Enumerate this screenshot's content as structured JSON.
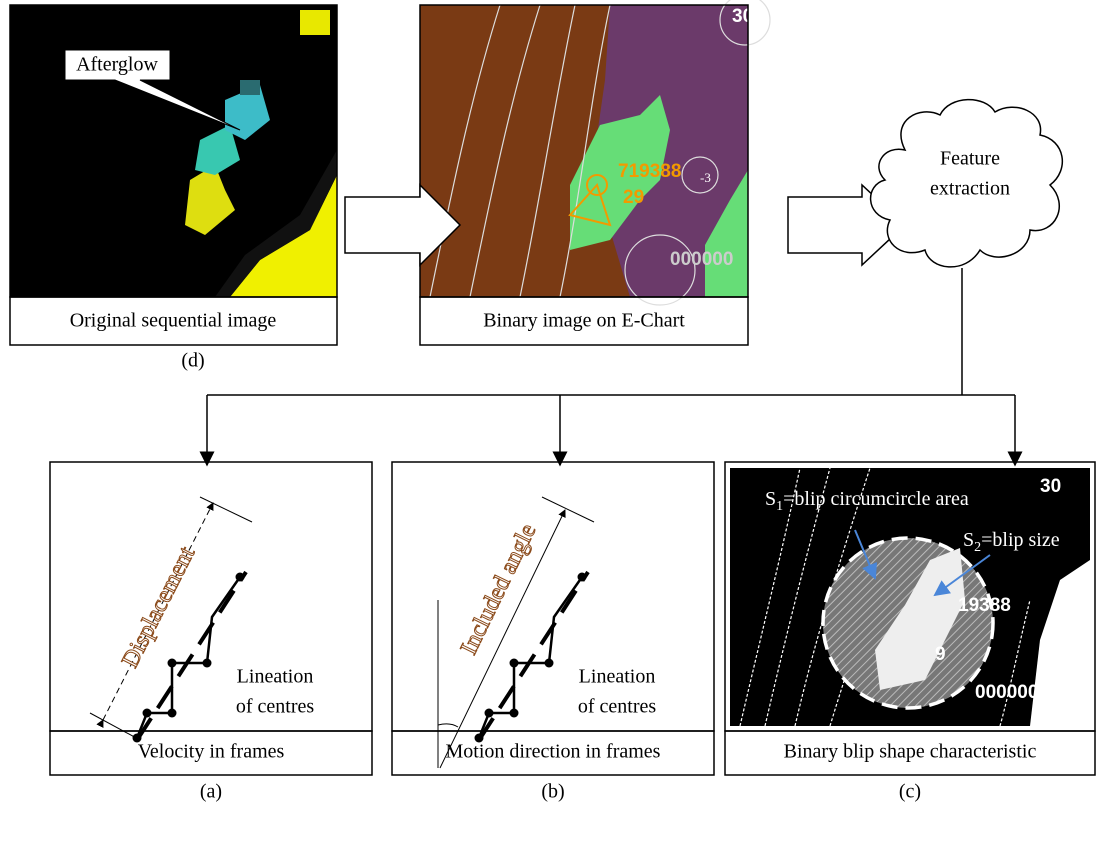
{
  "panel_d": {
    "callout": "Afterglow",
    "caption": "Original sequential image",
    "label": "(d)"
  },
  "panel_e": {
    "overlay": [
      "30",
      "719388",
      "29",
      "-3",
      "000000"
    ],
    "caption": "Binary image on E-Chart"
  },
  "cloud": {
    "line1": "Feature",
    "line2": "extraction"
  },
  "panel_a": {
    "measure": "Displacement",
    "note1": "Lineation",
    "note2": "of centres",
    "caption": "Velocity in frames",
    "label": "(a)"
  },
  "panel_b": {
    "measure": "Included angle",
    "note1": "Lineation",
    "note2": "of centres",
    "caption": "Motion direction in frames",
    "label": "(b)"
  },
  "panel_c": {
    "s1": {
      "symbol": "S",
      "sub": "1",
      "text": "=blip circumcircle area"
    },
    "s2": {
      "symbol": "S",
      "sub": "2",
      "text": "=blip size"
    },
    "overlay": [
      "30",
      "19388",
      "9",
      "000000"
    ],
    "caption": "Binary blip shape characteristic",
    "label": "(c)"
  }
}
